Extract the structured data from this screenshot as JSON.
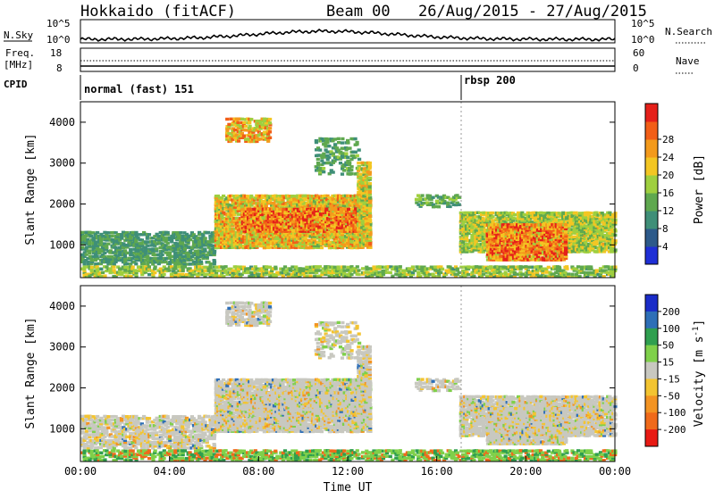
{
  "header": {
    "station": "Hokkaido (fitACF)",
    "beam": "Beam 00",
    "date_range": "26/Aug/2015 - 27/Aug/2015"
  },
  "panels": {
    "noise": {
      "left_label": "N.Sky",
      "right_label": "N.Search",
      "ticks_left": [
        "10^5",
        "10^0"
      ],
      "ticks_right": [
        "10^5",
        "10^0"
      ]
    },
    "freq": {
      "left_label_1": "Freq.",
      "left_label_2": "[MHz]",
      "right_label": "Nave",
      "ticks_left": [
        "18",
        "8"
      ],
      "ticks_right": [
        "60",
        "0"
      ]
    },
    "cpid": {
      "label": "CPID",
      "modes": [
        "normal (fast) 151",
        "rbsp 200"
      ]
    }
  },
  "chart_data": [
    {
      "type": "heatmap",
      "title": "",
      "ylabel": "Slant Range [km]",
      "xlabel": "",
      "ylim": [
        200,
        4500
      ],
      "yticks": [
        "1000",
        "2000",
        "3000",
        "4000"
      ],
      "colorbar": {
        "label": "Power [dB]",
        "ticks": [
          "4",
          "8",
          "12",
          "16",
          "20",
          "24",
          "28"
        ],
        "colors": [
          "#1f2fd6",
          "#2d5a8a",
          "#3f8f78",
          "#5fa84f",
          "#9fcf3f",
          "#f3c623",
          "#f39a1c",
          "#f25e17",
          "#e5201a"
        ]
      }
    },
    {
      "type": "heatmap",
      "title": "",
      "ylabel": "Slant Range [km]",
      "xlabel": "Time UT",
      "ylim": [
        200,
        4500
      ],
      "yticks": [
        "1000",
        "2000",
        "3000",
        "4000"
      ],
      "xticks": [
        "00:00",
        "04:00",
        "08:00",
        "12:00",
        "16:00",
        "20:00",
        "00:00"
      ],
      "colorbar": {
        "label": "Velocity [m s",
        "label_sup": "-1",
        "label_end": "]",
        "ticks": [
          "200",
          "100",
          "50",
          "15",
          "-15",
          "-50",
          "-100",
          "-200"
        ],
        "colors": [
          "#1a2cc8",
          "#2e6fb7",
          "#2f9f4f",
          "#7fd04a",
          "#c8c8c0",
          "#f3c431",
          "#f39423",
          "#f06a1a",
          "#e81a14"
        ]
      }
    }
  ]
}
